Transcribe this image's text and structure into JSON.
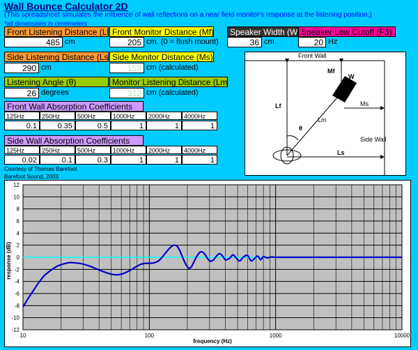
{
  "header": {
    "title": "Wall Bounce Calculator 2D",
    "subtitle": "(This spreadsheet simulates the influence of wall reflections on a near field monitor's response at the listening position.)",
    "note": "*all dimensions in centimeters"
  },
  "inputs": {
    "front_listening": {
      "label": "Front Listening Distance (Lf)",
      "value": "485",
      "unit": "cm"
    },
    "front_monitor": {
      "label": "Front Monitor Distance (Mf)",
      "value": "205",
      "unit": "cm.  (0 = flush mount)"
    },
    "speaker_width": {
      "label": "Speaker Width (W)",
      "value": "36",
      "unit": "cm"
    },
    "speaker_cutoff": {
      "label": "Speaker Low Cutoff (F3)",
      "value": "20",
      "unit": "Hz"
    },
    "side_listening": {
      "label": "Side Listening Distance (Ls)",
      "value": "290",
      "unit": "cm"
    },
    "side_monitor": {
      "label": "Side Monitor Distance (Ms)",
      "value": "153",
      "unit": "cm  (calculated)"
    },
    "listening_angle": {
      "label": "Listening Angle (θ)",
      "value": "26",
      "unit": "degrees"
    },
    "monitor_listening": {
      "label": "Monitor Listening Distance (Lm)",
      "value": "312",
      "unit": "cm  (calculated)"
    }
  },
  "front_absorption": {
    "label": "Front Wall Absorption Coefficients",
    "freqs": [
      "125Hz",
      "250Hz",
      "500Hz",
      "1000Hz",
      "2000Hz",
      "4000Hz"
    ],
    "values": [
      "0.1",
      "0.35",
      "0.5",
      "1",
      "1",
      "1"
    ]
  },
  "side_absorption": {
    "label": "Side Wall Absorption Coefficients",
    "freqs": [
      "125Hz",
      "250Hz",
      "500Hz",
      "1000Hz",
      "2000Hz",
      "4000Hz"
    ],
    "values": [
      "0.02",
      "0.1",
      "0.3",
      "1",
      "1",
      "1"
    ]
  },
  "credits": {
    "line1": "Courtesy of Thomas Barefoot",
    "line2": "Barefoot Sound, 2003"
  },
  "diagram": {
    "front_wall": "Front Wall",
    "side_wall": "Side Wall",
    "labels": {
      "mf": "Mf",
      "w": "W",
      "lf": "Lf",
      "ms": "Ms",
      "lm": "Lm",
      "theta": "θ",
      "ls": "Ls"
    }
  },
  "colors": {
    "background": "#00ccff",
    "curve": "#0000cc",
    "reference": "#00ffff",
    "plot_area": "#c0c0c0"
  },
  "chart_data": {
    "type": "line",
    "xlabel": "frequency (Hz)",
    "ylabel": "response (dB)",
    "xscale": "log",
    "xlim": [
      10,
      10000
    ],
    "ylim": [
      -12,
      12
    ],
    "xticks": [
      10,
      100,
      1000,
      10000
    ],
    "yticks": [
      12,
      10,
      8,
      6,
      4,
      2,
      0,
      -2,
      -4,
      -6,
      -8,
      -10,
      -12
    ],
    "grid": true,
    "legend": "none",
    "series": [
      {
        "role": "response",
        "x": [
          10,
          11,
          12,
          13,
          14,
          15,
          17,
          19,
          21,
          23,
          25,
          28,
          32,
          36,
          40,
          45,
          50,
          56,
          62,
          70,
          78,
          85,
          92,
          100,
          110,
          118,
          125,
          133,
          142,
          150,
          160,
          168,
          176,
          185,
          195,
          205,
          215,
          225,
          240,
          255,
          270,
          285,
          300,
          320,
          340,
          360,
          380,
          400,
          430,
          460,
          490,
          520,
          560,
          600,
          640,
          680,
          720,
          760,
          800,
          860,
          920,
          1000,
          1500,
          2000,
          3000,
          5000,
          7000,
          10000
        ],
        "y": [
          -8.2,
          -6.8,
          -5.6,
          -4.5,
          -3.6,
          -2.9,
          -2.0,
          -1.4,
          -1.1,
          -0.9,
          -0.9,
          -1.0,
          -1.3,
          -1.7,
          -2.1,
          -2.5,
          -2.8,
          -2.9,
          -2.7,
          -2.2,
          -1.6,
          -1.2,
          -1.0,
          -1.0,
          -0.9,
          -0.6,
          -0.1,
          0.6,
          1.3,
          1.8,
          2.0,
          1.7,
          0.9,
          -0.2,
          -1.2,
          -1.8,
          -1.6,
          -0.8,
          0.3,
          0.9,
          0.7,
          0.0,
          -0.6,
          -0.5,
          0.2,
          0.6,
          0.2,
          -0.4,
          -0.2,
          0.4,
          -0.2,
          -0.6,
          0.1,
          0.3,
          -0.6,
          -0.2,
          0.2,
          -0.4,
          0.1,
          -0.1,
          0.05,
          0,
          0,
          0,
          0,
          0,
          0,
          0
        ]
      },
      {
        "role": "reference",
        "x": [
          10,
          10000
        ],
        "y": [
          0,
          0
        ]
      }
    ]
  }
}
